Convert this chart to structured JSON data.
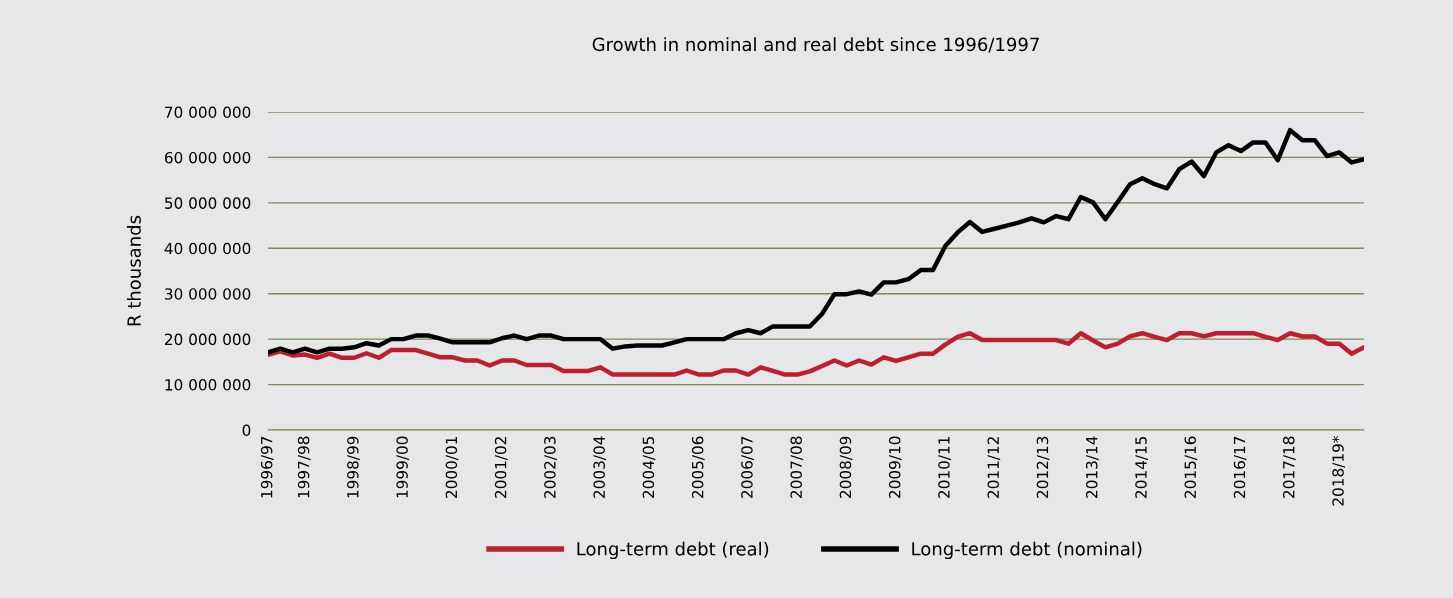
{
  "chart_data": {
    "type": "line",
    "title": "Growth in nominal and real debt since 1996/1997",
    "ylabel": "R thousands",
    "categories": [
      "1996/97",
      null,
      null,
      "1997/98",
      null,
      null,
      null,
      "1998/99",
      null,
      null,
      null,
      "1999/00",
      null,
      null,
      null,
      "2000/01",
      null,
      null,
      null,
      "2001/02",
      null,
      null,
      null,
      "2002/03",
      null,
      null,
      null,
      "2003/04",
      null,
      null,
      null,
      "2004/05",
      null,
      null,
      null,
      "2005/06",
      null,
      null,
      null,
      "2006/07",
      null,
      null,
      null,
      "2007/08",
      null,
      null,
      null,
      "2008/09",
      null,
      null,
      null,
      "2009/10",
      null,
      null,
      null,
      "2010/11",
      null,
      null,
      null,
      "2011/12",
      null,
      null,
      null,
      "2012/13",
      null,
      null,
      null,
      "2013/14",
      null,
      null,
      null,
      "2014/15",
      null,
      null,
      null,
      "2015/16",
      null,
      null,
      null,
      "2016/17",
      null,
      null,
      null,
      "2017/18",
      null,
      null,
      null,
      "2018/19*",
      null,
      null
    ],
    "series": [
      {
        "name": "Long-term debt (real)",
        "color": "#be1e2d",
        "values": [
          16600000,
          17300000,
          16400000,
          16600000,
          15900000,
          16800000,
          15900000,
          15900000,
          16900000,
          15900000,
          17600000,
          17600000,
          17600000,
          16800000,
          16000000,
          16000000,
          15300000,
          15300000,
          14200000,
          15300000,
          15300000,
          14300000,
          14300000,
          14300000,
          13000000,
          13000000,
          13000000,
          13800000,
          12200000,
          12200000,
          12200000,
          12200000,
          12200000,
          12200000,
          13100000,
          12200000,
          12200000,
          13100000,
          13100000,
          12200000,
          13800000,
          13000000,
          12200000,
          12200000,
          12900000,
          14100000,
          15300000,
          14200000,
          15300000,
          14400000,
          16000000,
          15200000,
          16000000,
          16800000,
          16800000,
          18800000,
          20500000,
          21300000,
          19800000,
          19800000,
          19800000,
          19800000,
          19800000,
          19800000,
          19800000,
          19000000,
          21300000,
          19700000,
          18200000,
          19000000,
          20600000,
          21300000,
          20500000,
          19800000,
          21300000,
          21300000,
          20600000,
          21300000,
          21300000,
          21300000,
          21300000,
          20500000,
          19800000,
          21300000,
          20600000,
          20600000,
          19000000,
          19000000,
          16800000,
          18200000
        ]
      },
      {
        "name": "Long-term debt (nominal)",
        "color": "#000000",
        "values": [
          17100000,
          17900000,
          17100000,
          17900000,
          17100000,
          17900000,
          17900000,
          18200000,
          19100000,
          18600000,
          20000000,
          20000000,
          20800000,
          20800000,
          20100000,
          19300000,
          19300000,
          19300000,
          19300000,
          20200000,
          20800000,
          20000000,
          20800000,
          20800000,
          20000000,
          20000000,
          20000000,
          20000000,
          17900000,
          18400000,
          18600000,
          18600000,
          18600000,
          19300000,
          20000000,
          20000000,
          20000000,
          20000000,
          21300000,
          22000000,
          21300000,
          22800000,
          22800000,
          22800000,
          22800000,
          25600000,
          29900000,
          29900000,
          30500000,
          29800000,
          32500000,
          32500000,
          33200000,
          35200000,
          35200000,
          40500000,
          43500000,
          45800000,
          43600000,
          44300000,
          45000000,
          45700000,
          46600000,
          45700000,
          47100000,
          46400000,
          51300000,
          50100000,
          46400000,
          50200000,
          54100000,
          55400000,
          54100000,
          53200000,
          57400000,
          59100000,
          55900000,
          61100000,
          62700000,
          61400000,
          63300000,
          63300000,
          59400000,
          66000000,
          63800000,
          63800000,
          60300000,
          61100000,
          58900000,
          59600000
        ]
      }
    ],
    "ylim": [
      0,
      70000000
    ],
    "yticks": [
      {
        "value": 0,
        "label": "0"
      },
      {
        "value": 10000000,
        "label": "10 000 000"
      },
      {
        "value": 20000000,
        "label": "20 000 000"
      },
      {
        "value": 30000000,
        "label": "30 000 000"
      },
      {
        "value": 40000000,
        "label": "40 000 000"
      },
      {
        "value": 50000000,
        "label": "50 000 000"
      },
      {
        "value": 60000000,
        "label": "60 000 000"
      },
      {
        "value": 70000000,
        "label": "70 000 000"
      }
    ],
    "grid": "y",
    "legend": "bottom",
    "marker": "none",
    "line_style": "solid"
  }
}
